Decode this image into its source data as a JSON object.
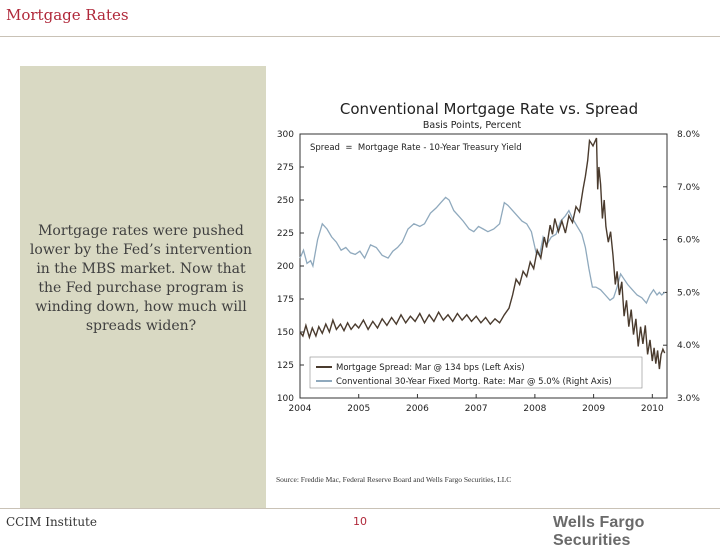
{
  "header": {
    "title": "Mortgage Rates"
  },
  "sidebar": {
    "text": "Mortgage rates were pushed lower by the Fed’s intervention in the MBS market.  Now that the Fed purchase program is winding down, how much will spreads widen?"
  },
  "footer": {
    "left": "CCIM Institute",
    "page": "10",
    "brand": "Wells Fargo Securities"
  },
  "source": "Source: Freddie Mac, Federal Reserve Board and Wells Fargo Securities, LLC",
  "colors": {
    "accent": "#b0283a",
    "spread_line": "#4a3b2e",
    "rate_line": "#8fa9bd",
    "panel": "#d9d9c3"
  },
  "chart_data": {
    "type": "line",
    "title": "Conventional Mortgage Rate vs. Spread",
    "subtitle": "Basis Points, Percent",
    "annotation": "Spread  =  Mortgage Rate - 10-Year Treasury Yield",
    "x_ticks": [
      "2004",
      "2005",
      "2006",
      "2007",
      "2008",
      "2009",
      "2010"
    ],
    "left_axis": {
      "ylim": [
        100,
        300
      ],
      "ticks": [
        "100",
        "125",
        "150",
        "175",
        "200",
        "225",
        "250",
        "275",
        "300"
      ]
    },
    "right_axis": {
      "ylim": [
        3.0,
        8.0
      ],
      "ticks": [
        "3.0%",
        "4.0%",
        "5.0%",
        "6.0%",
        "7.0%",
        "8.0%"
      ]
    },
    "xlim": [
      2004,
      2010.25
    ],
    "legend": [
      "Mortgage Spread: Mar @ 134 bps (Left Axis)",
      "Conventional 30-Year Fixed Mortg. Rate: Mar @ 5.0% (Right Axis)"
    ],
    "series": [
      {
        "name": "Mortgage Spread",
        "axis": "left",
        "points": [
          [
            2004.0,
            150
          ],
          [
            2004.05,
            147
          ],
          [
            2004.1,
            155
          ],
          [
            2004.16,
            146
          ],
          [
            2004.21,
            153
          ],
          [
            2004.27,
            147
          ],
          [
            2004.32,
            154
          ],
          [
            2004.38,
            149
          ],
          [
            2004.44,
            156
          ],
          [
            2004.5,
            150
          ],
          [
            2004.56,
            159
          ],
          [
            2004.62,
            152
          ],
          [
            2004.69,
            156
          ],
          [
            2004.75,
            151
          ],
          [
            2004.81,
            157
          ],
          [
            2004.87,
            152
          ],
          [
            2004.94,
            156
          ],
          [
            2005.0,
            153
          ],
          [
            2005.08,
            159
          ],
          [
            2005.16,
            152
          ],
          [
            2005.24,
            158
          ],
          [
            2005.32,
            153
          ],
          [
            2005.4,
            160
          ],
          [
            2005.48,
            155
          ],
          [
            2005.56,
            161
          ],
          [
            2005.64,
            156
          ],
          [
            2005.72,
            163
          ],
          [
            2005.8,
            157
          ],
          [
            2005.88,
            162
          ],
          [
            2005.96,
            158
          ],
          [
            2006.04,
            164
          ],
          [
            2006.12,
            157
          ],
          [
            2006.2,
            163
          ],
          [
            2006.28,
            158
          ],
          [
            2006.36,
            165
          ],
          [
            2006.44,
            159
          ],
          [
            2006.52,
            163
          ],
          [
            2006.6,
            158
          ],
          [
            2006.68,
            164
          ],
          [
            2006.76,
            159
          ],
          [
            2006.84,
            163
          ],
          [
            2006.92,
            158
          ],
          [
            2007.0,
            162
          ],
          [
            2007.08,
            157
          ],
          [
            2007.16,
            161
          ],
          [
            2007.24,
            156
          ],
          [
            2007.32,
            160
          ],
          [
            2007.4,
            157
          ],
          [
            2007.48,
            163
          ],
          [
            2007.56,
            168
          ],
          [
            2007.62,
            178
          ],
          [
            2007.68,
            190
          ],
          [
            2007.74,
            186
          ],
          [
            2007.8,
            196
          ],
          [
            2007.86,
            192
          ],
          [
            2007.92,
            203
          ],
          [
            2007.98,
            198
          ],
          [
            2008.04,
            212
          ],
          [
            2008.1,
            206
          ],
          [
            2008.16,
            222
          ],
          [
            2008.2,
            214
          ],
          [
            2008.26,
            231
          ],
          [
            2008.3,
            224
          ],
          [
            2008.34,
            236
          ],
          [
            2008.4,
            226
          ],
          [
            2008.46,
            234
          ],
          [
            2008.52,
            225
          ],
          [
            2008.58,
            238
          ],
          [
            2008.64,
            233
          ],
          [
            2008.7,
            245
          ],
          [
            2008.76,
            241
          ],
          [
            2008.82,
            258
          ],
          [
            2008.86,
            268
          ],
          [
            2008.9,
            280
          ],
          [
            2008.93,
            295
          ],
          [
            2008.96,
            293
          ],
          [
            2008.99,
            291
          ],
          [
            2009.02,
            294
          ],
          [
            2009.05,
            297
          ],
          [
            2009.07,
            258
          ],
          [
            2009.09,
            275
          ],
          [
            2009.12,
            262
          ],
          [
            2009.15,
            236
          ],
          [
            2009.18,
            250
          ],
          [
            2009.21,
            230
          ],
          [
            2009.25,
            218
          ],
          [
            2009.29,
            226
          ],
          [
            2009.33,
            208
          ],
          [
            2009.37,
            186
          ],
          [
            2009.4,
            196
          ],
          [
            2009.44,
            178
          ],
          [
            2009.48,
            188
          ],
          [
            2009.52,
            162
          ],
          [
            2009.56,
            174
          ],
          [
            2009.6,
            154
          ],
          [
            2009.64,
            167
          ],
          [
            2009.68,
            148
          ],
          [
            2009.72,
            160
          ],
          [
            2009.76,
            139
          ],
          [
            2009.8,
            154
          ],
          [
            2009.84,
            141
          ],
          [
            2009.88,
            155
          ],
          [
            2009.92,
            133
          ],
          [
            2009.96,
            144
          ],
          [
            2010.0,
            128
          ],
          [
            2010.03,
            138
          ],
          [
            2010.06,
            126
          ],
          [
            2010.09,
            136
          ],
          [
            2010.12,
            122
          ],
          [
            2010.15,
            133
          ],
          [
            2010.18,
            137
          ],
          [
            2010.21,
            134
          ]
        ]
      },
      {
        "name": "Conventional 30-Year Fixed Mortg. Rate",
        "axis": "right",
        "points": [
          [
            2004.0,
            5.65
          ],
          [
            2004.06,
            5.8
          ],
          [
            2004.12,
            5.55
          ],
          [
            2004.18,
            5.6
          ],
          [
            2004.22,
            5.5
          ],
          [
            2004.3,
            6.0
          ],
          [
            2004.38,
            6.3
          ],
          [
            2004.46,
            6.2
          ],
          [
            2004.54,
            6.05
          ],
          [
            2004.62,
            5.95
          ],
          [
            2004.7,
            5.8
          ],
          [
            2004.78,
            5.85
          ],
          [
            2004.86,
            5.75
          ],
          [
            2004.94,
            5.72
          ],
          [
            2005.02,
            5.78
          ],
          [
            2005.1,
            5.65
          ],
          [
            2005.2,
            5.9
          ],
          [
            2005.3,
            5.85
          ],
          [
            2005.4,
            5.7
          ],
          [
            2005.5,
            5.65
          ],
          [
            2005.58,
            5.78
          ],
          [
            2005.66,
            5.85
          ],
          [
            2005.74,
            5.95
          ],
          [
            2005.84,
            6.2
          ],
          [
            2005.94,
            6.3
          ],
          [
            2006.04,
            6.25
          ],
          [
            2006.12,
            6.3
          ],
          [
            2006.22,
            6.5
          ],
          [
            2006.32,
            6.6
          ],
          [
            2006.4,
            6.7
          ],
          [
            2006.48,
            6.8
          ],
          [
            2006.54,
            6.75
          ],
          [
            2006.62,
            6.55
          ],
          [
            2006.7,
            6.45
          ],
          [
            2006.78,
            6.35
          ],
          [
            2006.88,
            6.2
          ],
          [
            2006.96,
            6.15
          ],
          [
            2007.04,
            6.25
          ],
          [
            2007.12,
            6.2
          ],
          [
            2007.2,
            6.15
          ],
          [
            2007.3,
            6.2
          ],
          [
            2007.4,
            6.3
          ],
          [
            2007.48,
            6.7
          ],
          [
            2007.54,
            6.65
          ],
          [
            2007.62,
            6.55
          ],
          [
            2007.7,
            6.45
          ],
          [
            2007.78,
            6.35
          ],
          [
            2007.86,
            6.3
          ],
          [
            2007.94,
            6.15
          ],
          [
            2008.02,
            5.75
          ],
          [
            2008.08,
            5.7
          ],
          [
            2008.14,
            6.05
          ],
          [
            2008.2,
            5.9
          ],
          [
            2008.28,
            6.05
          ],
          [
            2008.36,
            6.1
          ],
          [
            2008.44,
            6.35
          ],
          [
            2008.52,
            6.45
          ],
          [
            2008.58,
            6.55
          ],
          [
            2008.64,
            6.4
          ],
          [
            2008.72,
            6.25
          ],
          [
            2008.8,
            6.1
          ],
          [
            2008.86,
            5.85
          ],
          [
            2008.92,
            5.45
          ],
          [
            2008.98,
            5.1
          ],
          [
            2009.04,
            5.1
          ],
          [
            2009.12,
            5.05
          ],
          [
            2009.2,
            4.95
          ],
          [
            2009.28,
            4.85
          ],
          [
            2009.34,
            4.9
          ],
          [
            2009.4,
            5.1
          ],
          [
            2009.46,
            5.35
          ],
          [
            2009.52,
            5.25
          ],
          [
            2009.58,
            5.15
          ],
          [
            2009.66,
            5.05
          ],
          [
            2009.74,
            4.95
          ],
          [
            2009.82,
            4.9
          ],
          [
            2009.9,
            4.8
          ],
          [
            2009.96,
            4.95
          ],
          [
            2010.02,
            5.05
          ],
          [
            2010.08,
            4.95
          ],
          [
            2010.12,
            5.0
          ],
          [
            2010.16,
            4.95
          ],
          [
            2010.21,
            5.0
          ]
        ]
      }
    ]
  }
}
